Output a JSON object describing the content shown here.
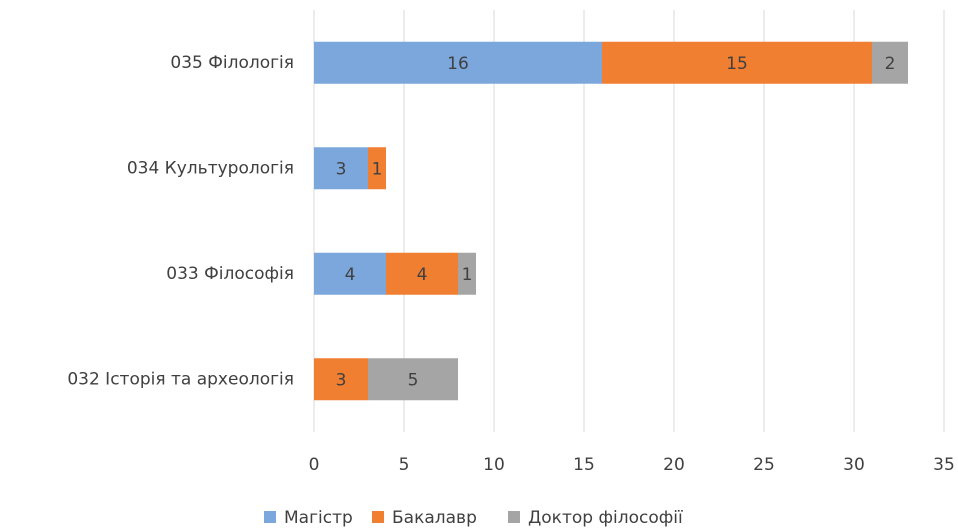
{
  "chart_data": {
    "type": "stacked_barh",
    "categories": [
      "035 Філологія",
      "034 Культурологія",
      "033 Філософія",
      "032 Історія та археологія"
    ],
    "series": [
      {
        "name": "Магістр",
        "color": "#7ba7dc",
        "values": [
          16,
          3,
          4,
          null
        ]
      },
      {
        "name": "Бакалавр",
        "color": "#f07f32",
        "values": [
          15,
          1,
          4,
          3
        ]
      },
      {
        "name": "Доктор філософії",
        "color": "#a5a5a5",
        "values": [
          2,
          null,
          1,
          5
        ]
      }
    ],
    "xlim": [
      0,
      35
    ],
    "xticks": [
      0,
      5,
      10,
      15,
      20,
      25,
      30,
      35
    ],
    "grid": true,
    "legend": "bottom"
  }
}
